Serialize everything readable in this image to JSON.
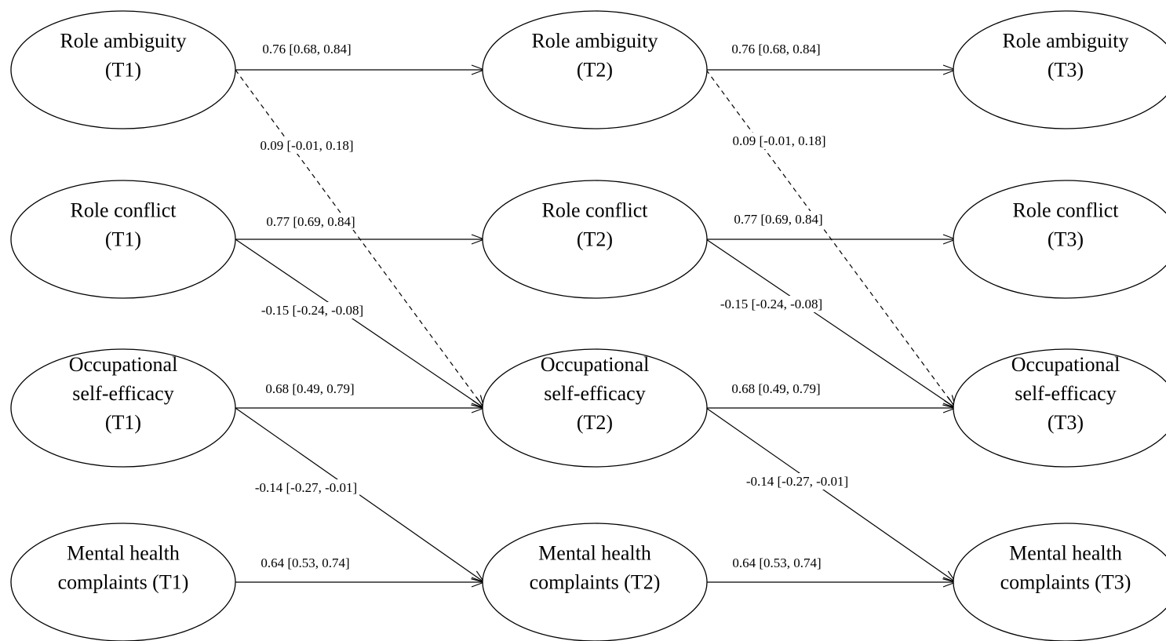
{
  "nodes": {
    "ra1": [
      "Role ambiguity",
      "(T1)"
    ],
    "ra2": [
      "Role ambiguity",
      "(T2)"
    ],
    "ra3": [
      "Role ambiguity",
      "(T3)"
    ],
    "rc1": [
      "Role conflict",
      "(T1)"
    ],
    "rc2": [
      "Role conflict",
      "(T2)"
    ],
    "rc3": [
      "Role conflict",
      "(T3)"
    ],
    "ose1": [
      "Occupational",
      "self-efficacy",
      "(T1)"
    ],
    "ose2": [
      "Occupational",
      "self-efficacy",
      "(T2)"
    ],
    "ose3": [
      "Occupational",
      "self-efficacy",
      "(T3)"
    ],
    "mhc1": [
      "Mental health",
      "complaints (T1)"
    ],
    "mhc2": [
      "Mental health",
      "complaints (T2)"
    ],
    "mhc3": [
      "Mental health",
      "complaints (T3)"
    ]
  },
  "paths": {
    "ra1_ra2": "0.76 [0.68, 0.84]",
    "ra2_ra3": "0.76 [0.68, 0.84]",
    "ra1_ose2": "0.09 [-0.01, 0.18]",
    "ra2_ose3": "0.09 [-0.01, 0.18]",
    "rc1_rc2": "0.77 [0.69, 0.84]",
    "rc2_rc3": "0.77 [0.69, 0.84]",
    "rc1_ose2": "-0.15 [-0.24, -0.08]",
    "rc2_ose3": "-0.15 [-0.24, -0.08]",
    "ose1_ose2": "0.68 [0.49, 0.79]",
    "ose2_ose3": "0.68 [0.49, 0.79]",
    "ose1_mhc2": "-0.14 [-0.27, -0.01]",
    "ose2_mhc3": "-0.14 [-0.27, -0.01]",
    "mhc1_mhc2": "0.64 [0.53, 0.74]",
    "mhc2_mhc3": "0.64 [0.53, 0.74]"
  },
  "dashed_paths": [
    "ra1_ose2",
    "ra2_ose3"
  ]
}
